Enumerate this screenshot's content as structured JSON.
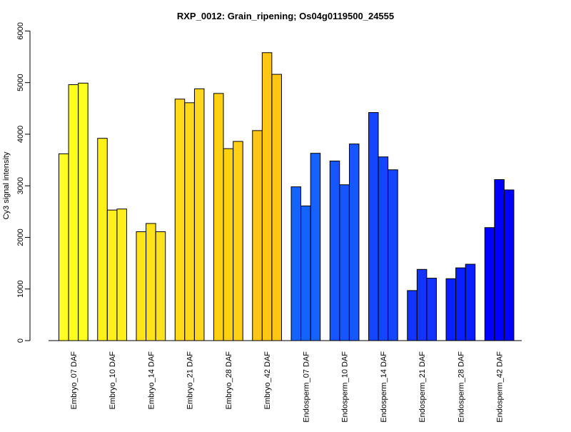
{
  "chart_data": {
    "type": "bar",
    "title": "RXP_0012: Grain_ripening; Os04g0119500_24555",
    "xlabel": "",
    "ylabel": "Cy3 signal intensity",
    "ylim": [
      0,
      6000
    ],
    "yticks": [
      0,
      1000,
      2000,
      3000,
      4000,
      5000,
      6000
    ],
    "grid": false,
    "categories": [
      "Embryo_07 DAF",
      "Embryo_10 DAF",
      "Embryo_14 DAF",
      "Embryo_21 DAF",
      "Embryo_28 DAF",
      "Embryo_42 DAF",
      "Endosperm_07 DAF",
      "Endosperm_10 DAF",
      "Endosperm_14 DAF",
      "Endosperm_21 DAF",
      "Endosperm_28 DAF",
      "Endosperm_42 DAF"
    ],
    "group_colors": [
      "#ffff1f",
      "#fff01a",
      "#ffe31a",
      "#ffd91a",
      "#ffd013",
      "#ffc613",
      "#1463ff",
      "#1656ff",
      "#1446ff",
      "#1433ff",
      "#0a1fff",
      "#0000ff"
    ],
    "replicates": [
      [
        3620,
        4960,
        4990
      ],
      [
        3920,
        2530,
        2550
      ],
      [
        2110,
        2270,
        2110
      ],
      [
        4680,
        4610,
        4880
      ],
      [
        4790,
        3720,
        3860
      ],
      [
        4070,
        5580,
        5160
      ],
      [
        2980,
        2610,
        3630
      ],
      [
        3480,
        3020,
        3810
      ],
      [
        4420,
        3560,
        3310
      ],
      [
        970,
        1380,
        1210
      ],
      [
        1200,
        1410,
        1480
      ],
      [
        2190,
        3120,
        2920
      ]
    ]
  }
}
